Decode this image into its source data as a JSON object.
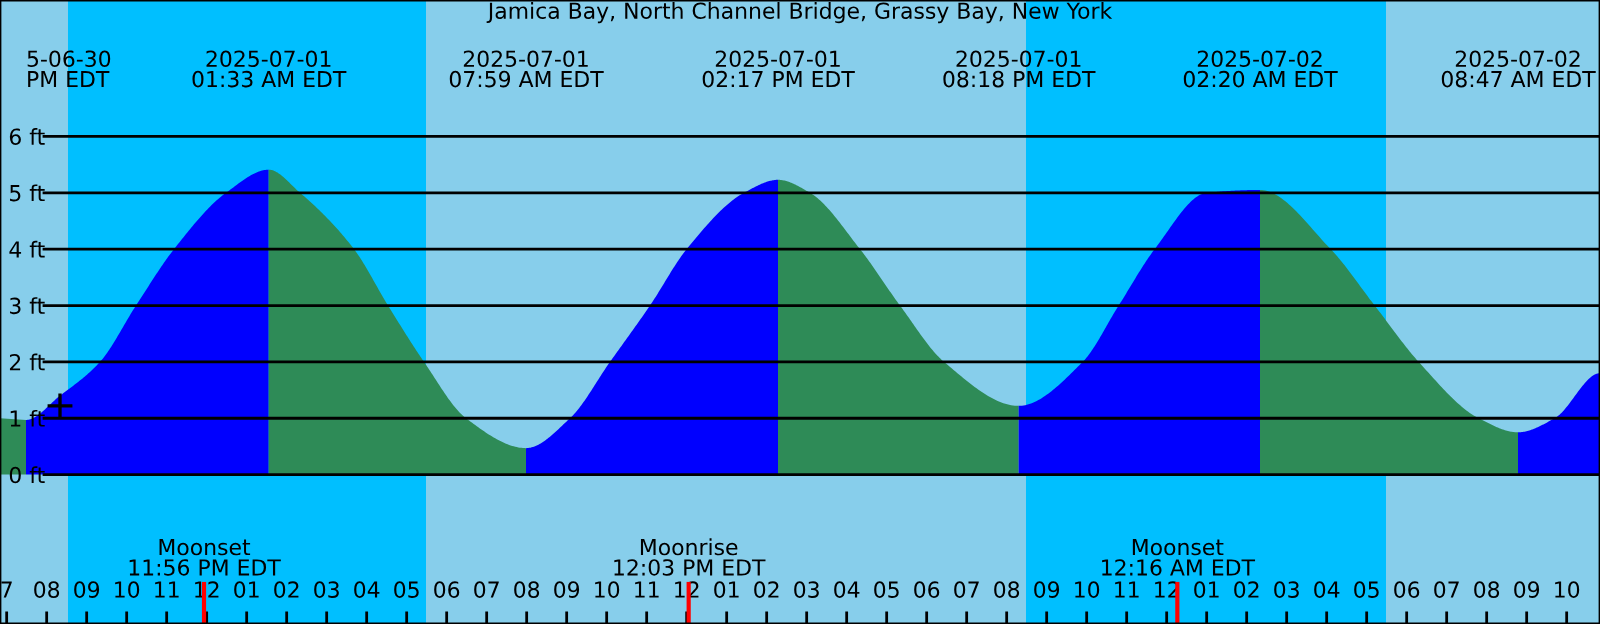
{
  "chart_data": {
    "type": "area",
    "title": "Jamica Bay, North Channel Bridge, Grassy Bay, New York",
    "xlim": [
      "2025-06-30T18:50",
      "2025-07-02T10:50"
    ],
    "ylim": [
      -2.65,
      8.42
    ],
    "yticks": [
      {
        "value": 0,
        "label": "0 ft"
      },
      {
        "value": 1,
        "label": "1 ft"
      },
      {
        "value": 2,
        "label": "2 ft"
      },
      {
        "value": 3,
        "label": "3 ft"
      },
      {
        "value": 4,
        "label": "4 ft"
      },
      {
        "value": 5,
        "label": "5 ft"
      },
      {
        "value": 6,
        "label": "6 ft"
      }
    ],
    "xticks": [
      {
        "value": "2025-06-30T19:00",
        "label": "7"
      },
      {
        "value": "2025-06-30T20:00",
        "label": "08"
      },
      {
        "value": "2025-06-30T21:00",
        "label": "09"
      },
      {
        "value": "2025-06-30T22:00",
        "label": "10"
      },
      {
        "value": "2025-06-30T23:00",
        "label": "11"
      },
      {
        "value": "2025-07-01T00:00",
        "label": "12"
      },
      {
        "value": "2025-07-01T01:00",
        "label": "01"
      },
      {
        "value": "2025-07-01T02:00",
        "label": "02"
      },
      {
        "value": "2025-07-01T03:00",
        "label": "03"
      },
      {
        "value": "2025-07-01T04:00",
        "label": "04"
      },
      {
        "value": "2025-07-01T05:00",
        "label": "05"
      },
      {
        "value": "2025-07-01T06:00",
        "label": "06"
      },
      {
        "value": "2025-07-01T07:00",
        "label": "07"
      },
      {
        "value": "2025-07-01T08:00",
        "label": "08"
      },
      {
        "value": "2025-07-01T09:00",
        "label": "09"
      },
      {
        "value": "2025-07-01T10:00",
        "label": "10"
      },
      {
        "value": "2025-07-01T11:00",
        "label": "11"
      },
      {
        "value": "2025-07-01T12:00",
        "label": "12"
      },
      {
        "value": "2025-07-01T13:00",
        "label": "01"
      },
      {
        "value": "2025-07-01T14:00",
        "label": "02"
      },
      {
        "value": "2025-07-01T15:00",
        "label": "03"
      },
      {
        "value": "2025-07-01T16:00",
        "label": "04"
      },
      {
        "value": "2025-07-01T17:00",
        "label": "05"
      },
      {
        "value": "2025-07-01T18:00",
        "label": "06"
      },
      {
        "value": "2025-07-01T19:00",
        "label": "07"
      },
      {
        "value": "2025-07-01T20:00",
        "label": "08"
      },
      {
        "value": "2025-07-01T21:00",
        "label": "09"
      },
      {
        "value": "2025-07-01T22:00",
        "label": "10"
      },
      {
        "value": "2025-07-01T23:00",
        "label": "11"
      },
      {
        "value": "2025-07-02T00:00",
        "label": "12"
      },
      {
        "value": "2025-07-02T01:00",
        "label": "01"
      },
      {
        "value": "2025-07-02T02:00",
        "label": "02"
      },
      {
        "value": "2025-07-02T03:00",
        "label": "03"
      },
      {
        "value": "2025-07-02T04:00",
        "label": "04"
      },
      {
        "value": "2025-07-02T05:00",
        "label": "05"
      },
      {
        "value": "2025-07-02T06:00",
        "label": "06"
      },
      {
        "value": "2025-07-02T07:00",
        "label": "07"
      },
      {
        "value": "2025-07-02T08:00",
        "label": "08"
      },
      {
        "value": "2025-07-02T09:00",
        "label": "09"
      },
      {
        "value": "2025-07-02T10:00",
        "label": "10"
      }
    ],
    "grid": "y",
    "bands": [
      {
        "axis": "x",
        "from": "2025-06-30T18:50",
        "to": "2025-06-30T20:32",
        "color": "#87ceeb"
      },
      {
        "axis": "x",
        "from": "2025-06-30T20:32",
        "to": "2025-07-01T05:29",
        "color": "#00bfff"
      },
      {
        "axis": "x",
        "from": "2025-07-01T05:29",
        "to": "2025-07-01T20:29",
        "color": "#87ceeb"
      },
      {
        "axis": "x",
        "from": "2025-07-01T20:29",
        "to": "2025-07-02T05:29",
        "color": "#00bfff"
      },
      {
        "axis": "x",
        "from": "2025-07-02T05:29",
        "to": "2025-07-02T10:50",
        "color": "#87ceeb"
      }
    ],
    "x2lim": [
      "2025-06-30T18:50",
      "2025-07-02T10:50"
    ],
    "x2ticks": [
      {
        "value": "2025-06-30T19:29",
        "label": "5-06-30\nPM EDT"
      },
      {
        "value": "2025-07-01T01:33",
        "label": "2025-07-01\n01:33 AM EDT"
      },
      {
        "value": "2025-07-01T07:59",
        "label": "2025-07-01\n07:59 AM EDT"
      },
      {
        "value": "2025-07-01T14:17",
        "label": "2025-07-01\n02:17 PM EDT"
      },
      {
        "value": "2025-07-01T20:18",
        "label": "2025-07-01\n08:18 PM EDT"
      },
      {
        "value": "2025-07-02T02:20",
        "label": "2025-07-02\n02:20 AM EDT"
      },
      {
        "value": "2025-07-02T08:47",
        "label": "2025-07-02\n08:47 AM EDT"
      }
    ],
    "ref_lines": [
      {
        "axis": "x",
        "value": "2025-06-30T23:56",
        "label": "Moonset\n11:56 PM EDT",
        "color": "#ff0000"
      },
      {
        "axis": "x",
        "value": "2025-07-01T12:03",
        "label": "Moonrise\n12:03 PM EDT",
        "color": "#ff0000"
      },
      {
        "axis": "x",
        "value": "2025-07-02T00:16",
        "label": "Moonset\n12:16 AM EDT",
        "color": "#ff0000"
      }
    ],
    "series": [
      {
        "color": "#2e8b57",
        "x": [
          "2025-06-30T18:50",
          "2025-06-30T19:29"
        ],
        "values": [
          1.0,
          0.97
        ]
      },
      {
        "color": "#0000ff",
        "x": [
          "2025-06-30T19:29",
          "2025-06-30T20:20",
          "2025-06-30T21:20",
          "2025-06-30T22:14",
          "2025-06-30T23:11",
          "2025-07-01T00:29",
          "2025-07-01T01:33"
        ],
        "values": [
          0.97,
          1.4,
          2.0,
          3.0,
          4.0,
          5.0,
          5.41
        ]
      },
      {
        "color": "#2e8b57",
        "x": [
          "2025-07-01T01:33",
          "2025-07-01T02:20",
          "2025-07-01T03:41",
          "2025-07-01T04:32",
          "2025-07-01T05:26",
          "2025-07-01T06:29",
          "2025-07-01T07:59"
        ],
        "values": [
          5.41,
          5.0,
          4.0,
          3.0,
          2.0,
          1.0,
          0.47
        ]
      },
      {
        "color": "#0000ff",
        "x": [
          "2025-07-01T07:59",
          "2025-07-01T09:05",
          "2025-07-01T10:05",
          "2025-07-01T11:05",
          "2025-07-01T12:00",
          "2025-07-01T13:26",
          "2025-07-01T14:17"
        ],
        "values": [
          0.47,
          1.0,
          2.0,
          3.0,
          4.0,
          5.0,
          5.23
        ]
      },
      {
        "color": "#2e8b57",
        "x": [
          "2025-07-01T14:17",
          "2025-07-01T15:05",
          "2025-07-01T16:20",
          "2025-07-01T17:20",
          "2025-07-01T18:26",
          "2025-07-01T20:18"
        ],
        "values": [
          5.23,
          5.0,
          4.0,
          3.0,
          2.0,
          1.22
        ]
      },
      {
        "color": "#0000ff",
        "x": [
          "2025-07-01T20:18",
          "2025-07-01T21:54",
          "2025-07-01T22:48",
          "2025-07-01T23:42",
          "2025-07-02T01:00",
          "2025-07-02T02:20"
        ],
        "values": [
          1.22,
          2.0,
          3.0,
          4.0,
          5.0,
          5.05
        ]
      },
      {
        "color": "#2e8b57",
        "x": [
          "2025-07-02T02:20",
          "2025-07-02T04:06",
          "2025-07-02T05:12",
          "2025-07-02T06:18",
          "2025-07-02T07:48",
          "2025-07-02T08:47"
        ],
        "values": [
          5.05,
          4.0,
          3.0,
          2.0,
          1.0,
          0.75
        ]
      },
      {
        "color": "#0000ff",
        "x": [
          "2025-07-02T08:47",
          "2025-07-02T09:42",
          "2025-07-02T10:50"
        ],
        "values": [
          0.75,
          1.0,
          1.8
        ]
      },
      {
        "type": "scatter",
        "marker": "cross",
        "color": "#000000",
        "x": [
          "2025-06-30T20:20"
        ],
        "values": [
          1.22
        ]
      }
    ]
  }
}
